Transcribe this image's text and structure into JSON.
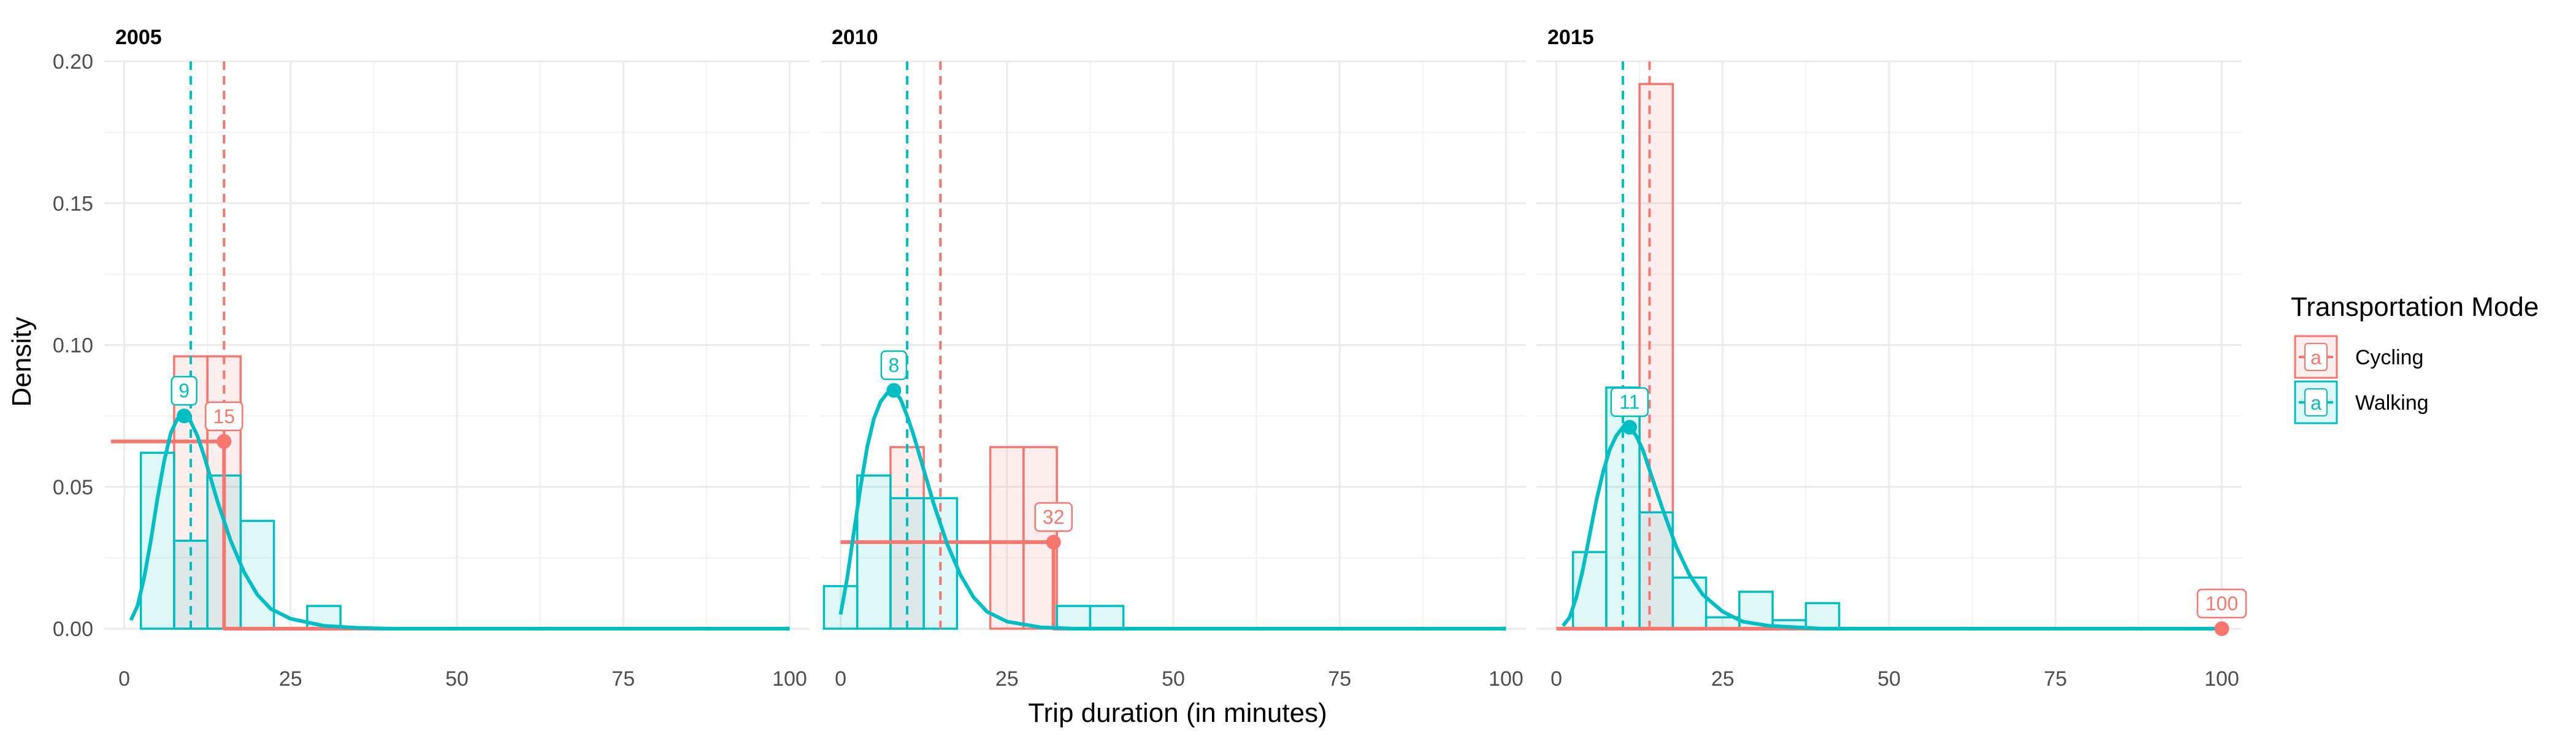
{
  "chart_data": {
    "type": "histogram",
    "xlabel": "Trip duration (in minutes)",
    "ylabel": "Density",
    "xlim": [
      -3,
      103
    ],
    "ylim": [
      0,
      0.2
    ],
    "x_ticks": [
      0,
      25,
      50,
      75,
      100
    ],
    "y_ticks": [
      0,
      0.05,
      0.1,
      0.15,
      0.2
    ],
    "y_tick_labels": [
      "0.00",
      "0.05",
      "0.10",
      "0.15",
      "0.20"
    ],
    "grid": true,
    "legend": {
      "title": "Transportation Mode",
      "position": "right",
      "entries": [
        {
          "name": "Cycling",
          "key": "cycling"
        },
        {
          "name": "Walking",
          "key": "walking"
        }
      ],
      "glyph": "a"
    },
    "colors": {
      "cycling": "#F8766D",
      "walking": "#00BFC4"
    },
    "bin_width": 5,
    "panels": [
      {
        "title": "2005",
        "bins": {
          "cycling": [
            {
              "x0": 7.5,
              "x1": 12.5,
              "d": 0.096
            },
            {
              "x0": 12.5,
              "x1": 17.5,
              "d": 0.096
            }
          ],
          "walking": [
            {
              "x0": 2.5,
              "x1": 7.5,
              "d": 0.062
            },
            {
              "x0": 7.5,
              "x1": 12.5,
              "d": 0.031
            },
            {
              "x0": 12.5,
              "x1": 17.5,
              "d": 0.054
            },
            {
              "x0": 17.5,
              "x1": 22.5,
              "d": 0.038
            },
            {
              "x0": 27.5,
              "x1": 32.5,
              "d": 0.008
            }
          ]
        },
        "means": {
          "cycling": 15,
          "walking": 10
        },
        "density_curves": {
          "cycling": [
            [
              -2,
              0.066
            ],
            [
              15,
              0.066
            ],
            [
              15,
              0.0
            ],
            [
              100,
              0.0
            ]
          ],
          "walking": [
            [
              1,
              0.003
            ],
            [
              2,
              0.008
            ],
            [
              3,
              0.018
            ],
            [
              4,
              0.031
            ],
            [
              5,
              0.046
            ],
            [
              6,
              0.059
            ],
            [
              7,
              0.069
            ],
            [
              8,
              0.074
            ],
            [
              9,
              0.075
            ],
            [
              10,
              0.073
            ],
            [
              11,
              0.068
            ],
            [
              12,
              0.061
            ],
            [
              13,
              0.053
            ],
            [
              14,
              0.045
            ],
            [
              16,
              0.031
            ],
            [
              18,
              0.02
            ],
            [
              20,
              0.012
            ],
            [
              22,
              0.007
            ],
            [
              25,
              0.0035
            ],
            [
              30,
              0.001
            ],
            [
              35,
              0.0003
            ],
            [
              40,
              0.0
            ],
            [
              100,
              0.0
            ]
          ]
        },
        "peaks": {
          "cycling": {
            "x": 15,
            "y": 0.066,
            "label": "15"
          },
          "walking": {
            "x": 9,
            "y": 0.075,
            "label": "9"
          }
        }
      },
      {
        "title": "2010",
        "bins": {
          "cycling": [
            {
              "x0": 7.5,
              "x1": 12.5,
              "d": 0.064
            },
            {
              "x0": 22.5,
              "x1": 27.5,
              "d": 0.064
            },
            {
              "x0": 27.5,
              "x1": 32.5,
              "d": 0.064
            }
          ],
          "walking": [
            {
              "x0": -2.5,
              "x1": 2.5,
              "d": 0.015
            },
            {
              "x0": 2.5,
              "x1": 7.5,
              "d": 0.054
            },
            {
              "x0": 7.5,
              "x1": 12.5,
              "d": 0.046
            },
            {
              "x0": 12.5,
              "x1": 17.5,
              "d": 0.046
            },
            {
              "x0": 32.5,
              "x1": 37.5,
              "d": 0.008
            },
            {
              "x0": 37.5,
              "x1": 42.5,
              "d": 0.008
            }
          ]
        },
        "means": {
          "cycling": 15,
          "walking": 10
        },
        "density_curves": {
          "cycling": [
            [
              0,
              0.0305
            ],
            [
              32,
              0.0305
            ],
            [
              32,
              0.0
            ],
            [
              100,
              0.0
            ]
          ],
          "walking": [
            [
              0,
              0.005
            ],
            [
              1,
              0.018
            ],
            [
              2,
              0.034
            ],
            [
              3,
              0.05
            ],
            [
              4,
              0.064
            ],
            [
              5,
              0.074
            ],
            [
              6,
              0.08
            ],
            [
              7,
              0.083
            ],
            [
              8,
              0.084
            ],
            [
              9,
              0.081
            ],
            [
              10,
              0.075
            ],
            [
              11,
              0.068
            ],
            [
              12,
              0.06
            ],
            [
              14,
              0.044
            ],
            [
              16,
              0.03
            ],
            [
              18,
              0.019
            ],
            [
              20,
              0.011
            ],
            [
              22,
              0.006
            ],
            [
              25,
              0.0025
            ],
            [
              30,
              0.0005
            ],
            [
              35,
              0.0
            ],
            [
              100,
              0.0
            ]
          ]
        },
        "peaks": {
          "cycling": {
            "x": 32,
            "y": 0.0305,
            "label": "32"
          },
          "walking": {
            "x": 8,
            "y": 0.084,
            "label": "8"
          }
        }
      },
      {
        "title": "2015",
        "bins": {
          "cycling": [
            {
              "x0": 12.5,
              "x1": 17.5,
              "d": 0.192
            }
          ],
          "walking": [
            {
              "x0": 2.5,
              "x1": 7.5,
              "d": 0.027
            },
            {
              "x0": 7.5,
              "x1": 12.5,
              "d": 0.085
            },
            {
              "x0": 12.5,
              "x1": 17.5,
              "d": 0.041
            },
            {
              "x0": 17.5,
              "x1": 22.5,
              "d": 0.018
            },
            {
              "x0": 22.5,
              "x1": 27.5,
              "d": 0.004
            },
            {
              "x0": 27.5,
              "x1": 32.5,
              "d": 0.013
            },
            {
              "x0": 32.5,
              "x1": 37.5,
              "d": 0.003
            },
            {
              "x0": 37.5,
              "x1": 42.5,
              "d": 0.009
            }
          ]
        },
        "means": {
          "cycling": 14,
          "walking": 10
        },
        "density_curves": {
          "cycling": [
            [
              0,
              0.0
            ],
            [
              100,
              0.0
            ]
          ],
          "walking": [
            [
              1,
              0.001
            ],
            [
              2,
              0.004
            ],
            [
              3,
              0.011
            ],
            [
              4,
              0.021
            ],
            [
              5,
              0.033
            ],
            [
              6,
              0.045
            ],
            [
              7,
              0.055
            ],
            [
              8,
              0.063
            ],
            [
              9,
              0.068
            ],
            [
              10,
              0.071
            ],
            [
              11,
              0.071
            ],
            [
              12,
              0.068
            ],
            [
              13,
              0.063
            ],
            [
              14,
              0.056
            ],
            [
              16,
              0.042
            ],
            [
              18,
              0.029
            ],
            [
              20,
              0.019
            ],
            [
              22,
              0.012
            ],
            [
              25,
              0.006
            ],
            [
              28,
              0.0025
            ],
            [
              32,
              0.001
            ],
            [
              40,
              0.0
            ],
            [
              100,
              0.0
            ]
          ]
        },
        "peaks": {
          "cycling": {
            "x": 100,
            "y": 0.0,
            "label": "100"
          },
          "walking": {
            "x": 11,
            "y": 0.071,
            "label": "11"
          }
        }
      }
    ]
  }
}
